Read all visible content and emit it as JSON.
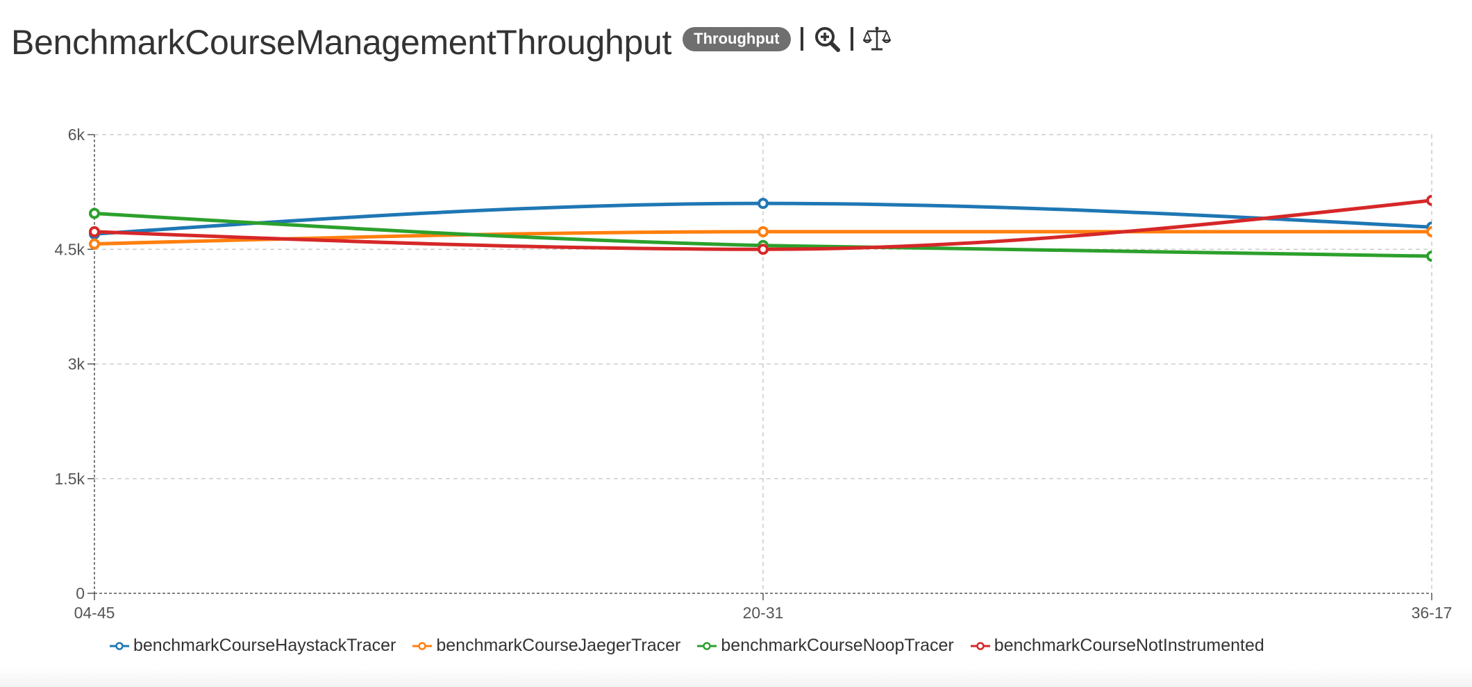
{
  "header": {
    "title": "BenchmarkCourseManagementThroughput",
    "badge": "Throughput",
    "icons": [
      "zoom-in-icon",
      "scale-balance-icon"
    ]
  },
  "chart_data": {
    "type": "line",
    "title": "BenchmarkCourseManagementThroughput",
    "xlabel": "",
    "ylabel": "",
    "categories": [
      "04-45",
      "20-31",
      "36-17"
    ],
    "y_ticks": [
      "0",
      "1.5k",
      "3k",
      "4.5k",
      "6k"
    ],
    "y_tick_values": [
      0,
      1500,
      3000,
      4500,
      6000
    ],
    "ylim": [
      0,
      6000
    ],
    "grid": true,
    "legend_position": "bottom-left",
    "series": [
      {
        "name": "benchmarkCourseHaystackTracer",
        "color": "#1f77b4",
        "values": [
          4700,
          5100,
          4790
        ]
      },
      {
        "name": "benchmarkCourseJaegerTracer",
        "color": "#ff7f0e",
        "values": [
          4570,
          4730,
          4730
        ]
      },
      {
        "name": "benchmarkCourseNoopTracer",
        "color": "#2ca02c",
        "values": [
          4970,
          4550,
          4410
        ]
      },
      {
        "name": "benchmarkCourseNotInstrumented",
        "color": "#d62728",
        "values": [
          4730,
          4500,
          5140
        ]
      }
    ]
  }
}
